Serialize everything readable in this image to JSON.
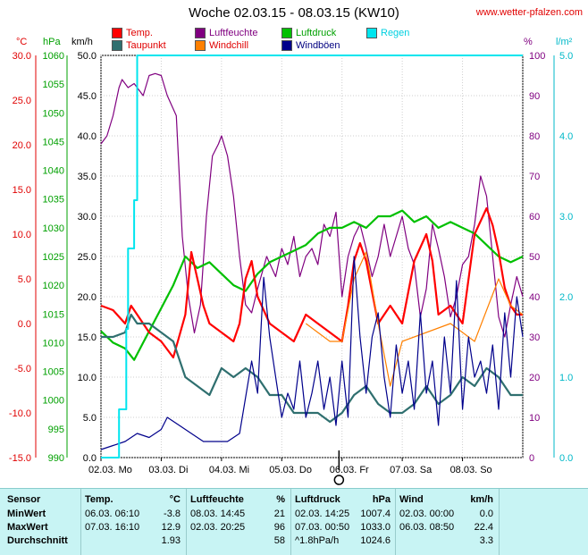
{
  "header": {
    "title": "Woche 02.03.15 - 08.03.15 (KW10)",
    "site": "www.wetter-pfalzen.com"
  },
  "legend": [
    {
      "label": "Temp.",
      "color": "#ff0000"
    },
    {
      "label": "Luftfeuchte",
      "color": "#800080"
    },
    {
      "label": "Luftdruck",
      "color": "#00c000"
    },
    {
      "label": "Regen",
      "color": "#00e5ee"
    },
    {
      "label": "Taupunkt",
      "color": "#2f6f6f"
    },
    {
      "label": "Windchill",
      "color": "#ff8000"
    },
    {
      "label": "Windböen",
      "color": "#00008b"
    }
  ],
  "axis_units": {
    "temp": "°C",
    "pressure": "hPa",
    "wind": "km/h",
    "humidity": "%",
    "rain": "l/m²"
  },
  "colors": {
    "temp": "#e00000",
    "pressure": "#00a000",
    "wind": "#000000",
    "humidity": "#800080",
    "rain": "#00b8c8",
    "grid": "#cfcfcf"
  },
  "chart_data": {
    "type": "line",
    "xlabels": [
      "02.03. Mo",
      "03.03. Di",
      "04.03. Mi",
      "05.03. Do",
      "06.03. Fr",
      "07.03. Sa",
      "08.03. So"
    ],
    "xlim": [
      0,
      7
    ],
    "axes": {
      "temp": {
        "range": [
          -15,
          30
        ],
        "ticks": [
          -15.0,
          -10.0,
          -5.0,
          0.0,
          5.0,
          10.0,
          15.0,
          20.0,
          25.0,
          30.0
        ]
      },
      "pressure": {
        "range": [
          990,
          1060
        ],
        "ticks": [
          990,
          995,
          1000,
          1005,
          1010,
          1015,
          1020,
          1025,
          1030,
          1035,
          1040,
          1045,
          1050,
          1055,
          1060
        ]
      },
      "wind": {
        "range": [
          0,
          50
        ],
        "ticks": [
          0.0,
          5.0,
          10.0,
          15.0,
          20.0,
          25.0,
          30.0,
          35.0,
          40.0,
          45.0,
          50.0
        ]
      },
      "humidity": {
        "range": [
          0,
          100
        ],
        "ticks": [
          0,
          10,
          20,
          30,
          40,
          50,
          60,
          70,
          80,
          90,
          100
        ]
      },
      "rain": {
        "range": [
          0,
          5
        ],
        "ticks": [
          0.0,
          1.0,
          2.0,
          3.0,
          4.0,
          5.0
        ]
      }
    },
    "series": [
      {
        "name": "Luftfeuchte",
        "axis": "humidity",
        "color": "#800080",
        "x": [
          0,
          0.1,
          0.2,
          0.3,
          0.35,
          0.45,
          0.55,
          0.6,
          0.7,
          0.8,
          0.9,
          1.0,
          1.1,
          1.25,
          1.35,
          1.45,
          1.55,
          1.65,
          1.75,
          1.85,
          1.95,
          2.0,
          2.1,
          2.2,
          2.3,
          2.4,
          2.5,
          2.6,
          2.75,
          2.9,
          3.0,
          3.1,
          3.2,
          3.3,
          3.4,
          3.5,
          3.6,
          3.7,
          3.8,
          3.9,
          4.0,
          4.1,
          4.2,
          4.3,
          4.4,
          4.5,
          4.6,
          4.7,
          4.8,
          4.9,
          5.0,
          5.1,
          5.2,
          5.3,
          5.4,
          5.5,
          5.6,
          5.7,
          5.8,
          5.9,
          6.0,
          6.1,
          6.2,
          6.3,
          6.4,
          6.5,
          6.6,
          6.7,
          6.8,
          6.9,
          7.0
        ],
        "y": [
          78,
          80,
          85,
          92,
          94,
          92,
          93,
          92,
          90,
          95,
          95.5,
          95,
          90,
          85,
          55,
          40,
          31,
          38,
          60,
          75,
          78,
          80,
          75,
          65,
          50,
          38,
          36,
          42,
          50,
          45,
          52,
          48,
          55,
          45,
          50,
          52,
          48,
          58,
          55,
          61,
          40,
          50,
          55,
          58,
          52,
          45,
          50,
          58,
          50,
          55,
          60,
          52,
          48,
          35,
          42,
          58,
          52,
          45,
          35,
          40,
          48,
          50,
          58,
          70,
          65,
          50,
          35,
          30,
          38,
          45,
          40
        ]
      },
      {
        "name": "Luftdruck",
        "axis": "pressure",
        "color": "#00c000",
        "x": [
          0,
          0.2,
          0.4,
          0.55,
          0.7,
          0.85,
          1.0,
          1.2,
          1.4,
          1.6,
          1.8,
          2.0,
          2.2,
          2.4,
          2.6,
          2.8,
          3.0,
          3.2,
          3.4,
          3.6,
          3.8,
          4.0,
          4.2,
          4.4,
          4.6,
          4.8,
          5.0,
          5.2,
          5.4,
          5.6,
          5.8,
          6.0,
          6.2,
          6.4,
          6.6,
          6.8,
          7.0
        ],
        "y": [
          1012,
          1010,
          1009,
          1007,
          1010,
          1013,
          1016,
          1020,
          1025,
          1023,
          1024,
          1022,
          1020,
          1019,
          1022,
          1024,
          1025,
          1026,
          1027,
          1029,
          1030,
          1030,
          1031,
          1030,
          1032,
          1032,
          1033,
          1031,
          1032,
          1030,
          1031,
          1030,
          1029,
          1027,
          1025,
          1024,
          1025
        ]
      },
      {
        "name": "Temp.",
        "axis": "temp",
        "color": "#ff0000",
        "x": [
          0,
          0.2,
          0.4,
          0.5,
          0.6,
          0.8,
          1.0,
          1.2,
          1.4,
          1.5,
          1.6,
          1.7,
          1.8,
          2.0,
          2.2,
          2.3,
          2.4,
          2.5,
          2.6,
          2.8,
          3.0,
          3.2,
          3.4,
          3.6,
          3.8,
          4.0,
          4.1,
          4.2,
          4.3,
          4.4,
          4.6,
          4.8,
          5.0,
          5.2,
          5.4,
          5.5,
          5.6,
          5.8,
          6.0,
          6.2,
          6.4,
          6.5,
          6.6,
          6.7,
          6.8,
          6.9,
          7.0
        ],
        "y": [
          2,
          1.5,
          0,
          2,
          1,
          -1,
          -2,
          -3.8,
          1,
          8,
          5,
          2,
          0,
          -1,
          -2,
          0,
          5,
          7,
          3,
          0,
          -1,
          -2,
          1,
          0,
          -1,
          -2,
          2,
          7,
          9,
          7,
          0,
          2,
          0,
          7,
          10,
          7,
          1,
          2,
          0,
          10,
          12.9,
          11,
          8,
          4,
          2,
          1,
          1
        ]
      },
      {
        "name": "Windchill",
        "axis": "temp",
        "color": "#ff8000",
        "x": [
          3.4,
          3.6,
          3.8,
          4.0,
          4.2,
          4.4,
          4.6,
          4.8,
          5.0,
          5.8,
          6.0,
          6.2,
          6.6,
          6.8,
          7.0
        ],
        "y": [
          0,
          -1,
          -2,
          -2,
          5,
          8,
          0,
          -7,
          -2,
          0,
          -1,
          -2,
          5,
          2,
          1
        ]
      },
      {
        "name": "Taupunkt",
        "axis": "temp",
        "color": "#2f6f6f",
        "x": [
          0,
          0.2,
          0.4,
          0.5,
          0.6,
          0.8,
          1.0,
          1.2,
          1.4,
          1.6,
          1.8,
          2.0,
          2.2,
          2.4,
          2.6,
          2.8,
          3.0,
          3.2,
          3.4,
          3.6,
          3.8,
          4.0,
          4.2,
          4.4,
          4.6,
          4.8,
          5.0,
          5.2,
          5.4,
          5.6,
          5.8,
          6.0,
          6.2,
          6.4,
          6.6,
          6.8,
          7.0
        ],
        "y": [
          -1.5,
          -1.5,
          -1,
          1,
          0,
          0,
          -1,
          -2,
          -6,
          -7,
          -8,
          -5,
          -6,
          -5,
          -6,
          -8,
          -8,
          -10,
          -10,
          -10,
          -11,
          -10,
          -8,
          -7,
          -9,
          -10,
          -10,
          -9,
          -7,
          -9,
          -8,
          -6,
          -7,
          -5,
          -6,
          -8,
          -8
        ]
      },
      {
        "name": "Windböen",
        "axis": "wind",
        "color": "#00008b",
        "x": [
          0,
          0.2,
          0.4,
          0.6,
          0.8,
          1.0,
          1.1,
          1.3,
          1.5,
          1.7,
          1.9,
          2.1,
          2.3,
          2.5,
          2.6,
          2.7,
          2.8,
          2.9,
          3.0,
          3.1,
          3.2,
          3.3,
          3.4,
          3.5,
          3.6,
          3.7,
          3.8,
          3.9,
          4.0,
          4.1,
          4.2,
          4.3,
          4.4,
          4.5,
          4.6,
          4.7,
          4.8,
          4.9,
          5.0,
          5.1,
          5.2,
          5.3,
          5.4,
          5.5,
          5.6,
          5.7,
          5.8,
          5.9,
          6.0,
          6.1,
          6.2,
          6.3,
          6.4,
          6.5,
          6.6,
          6.7,
          6.8,
          6.9,
          7.0
        ],
        "y": [
          1.0,
          1.5,
          2.0,
          3.0,
          2.5,
          3.5,
          5.0,
          4.0,
          3.0,
          2.0,
          2.0,
          2.0,
          3.0,
          12.0,
          8.0,
          22.4,
          15.0,
          10.0,
          5.0,
          8.0,
          6.0,
          12.0,
          5.0,
          8.0,
          12.0,
          6.0,
          10.0,
          4.0,
          12.0,
          5.0,
          25.0,
          15.0,
          8.0,
          15.0,
          18.0,
          10.0,
          5.0,
          14.0,
          8.0,
          12.0,
          6.0,
          18.0,
          8.0,
          12.0,
          4.0,
          15.0,
          8.0,
          22.0,
          6.0,
          15.0,
          10.0,
          12.0,
          8.0,
          14.0,
          6.0,
          18.0,
          10.0,
          20.0,
          15.0
        ]
      },
      {
        "name": "Regen",
        "axis": "rain",
        "color": "#00e5ee",
        "step": true,
        "x": [
          0,
          0.28,
          0.3,
          0.42,
          0.45,
          0.55,
          0.6,
          7.0
        ],
        "y": [
          0,
          0,
          0.6,
          1.6,
          2.6,
          3.2,
          5.0,
          5.0
        ]
      }
    ]
  },
  "stats": {
    "headers": [
      "Sensor",
      "Temp.",
      "°C",
      "Luftfeuchte",
      "%",
      "Luftdruck",
      "hPa",
      "Wind",
      "km/h"
    ],
    "rows": [
      {
        "label": "MinWert",
        "t_time": "06.03.  06:10",
        "t_val": "-3.8",
        "h_time": "08.03.  14:45",
        "h_val": "21",
        "p_time": "02.03.  14:25",
        "p_val": "1007.4",
        "w_time": "02.03.  00:00",
        "w_val": "0.0"
      },
      {
        "label": "MaxWert",
        "t_time": "07.03.  16:10",
        "t_val": "12.9",
        "h_time": "02.03.  20:25",
        "h_val": "96",
        "p_time": "07.03.  00:50",
        "p_val": "1033.0",
        "w_time": "06.03.  08:50",
        "w_val": "22.4"
      },
      {
        "label": "Durchschnitt",
        "t_time": "",
        "t_val": "1.93",
        "h_time": "",
        "h_val": "58",
        "p_time": "^1.8hPa/h",
        "p_val": "1024.6",
        "w_time": "",
        "w_val": "3.3"
      }
    ]
  }
}
